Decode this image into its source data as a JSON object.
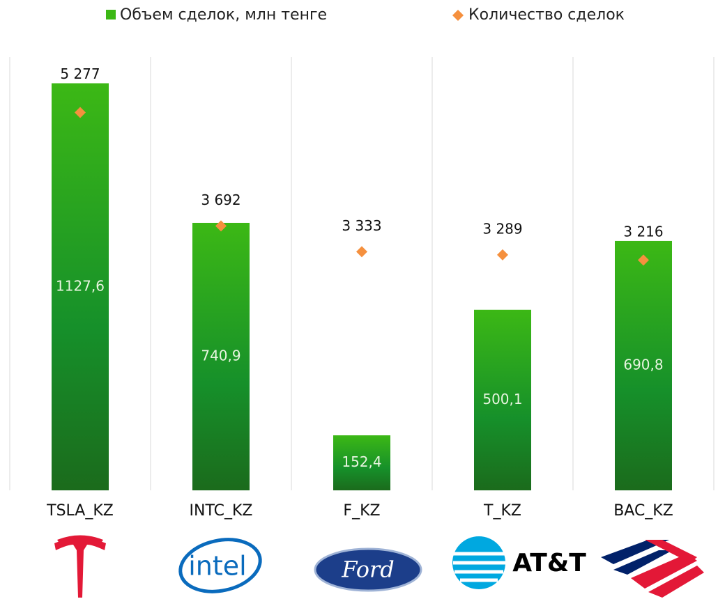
{
  "chart_data": {
    "type": "bar",
    "categories": [
      "TSLA_KZ",
      "INTC_KZ",
      "F_KZ",
      "T_KZ",
      "BAC_KZ"
    ],
    "series": [
      {
        "name": "Объем сделок, млн тенге",
        "color": "#3cb815",
        "values": [
          1127.6,
          740.9,
          152.4,
          500.1,
          690.8
        ],
        "value_labels": [
          "1127,6",
          "740,9",
          "152,4",
          "500,1",
          "690,8"
        ]
      },
      {
        "name": "Количество сделок",
        "color": "#f5903e",
        "type": "scatter",
        "axis": "y2",
        "values": [
          5277,
          3692,
          3333,
          3289,
          3216
        ],
        "value_labels": [
          "5 277",
          "3 692",
          "3 333",
          "3 289",
          "3 216"
        ]
      }
    ],
    "ylim": [
      0,
      1200
    ],
    "y2lim": [
      0,
      6050
    ],
    "legend": "top",
    "logo_labels": [
      "intel",
      "Ford",
      "AT&T"
    ]
  }
}
